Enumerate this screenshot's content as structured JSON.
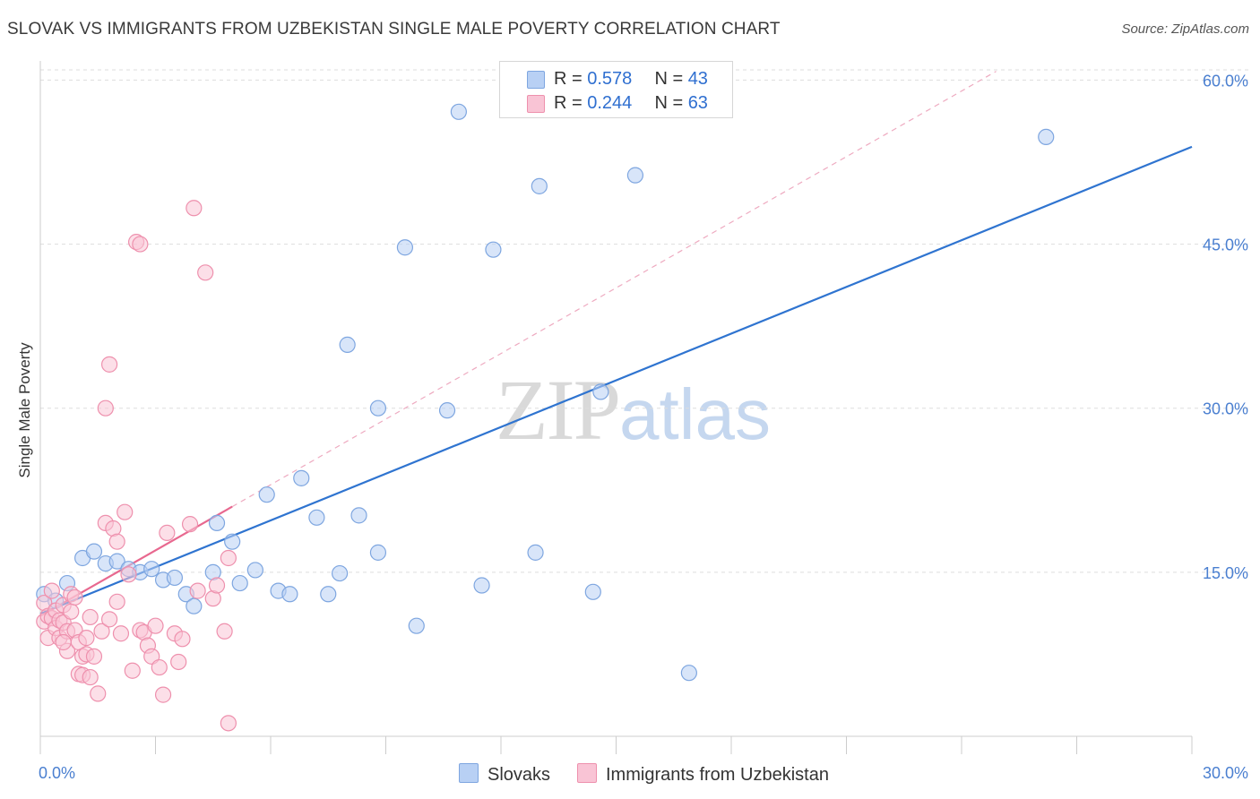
{
  "title": "SLOVAK VS IMMIGRANTS FROM UZBEKISTAN SINGLE MALE POVERTY CORRELATION CHART",
  "source": "Source: ZipAtlas.com",
  "watermark": {
    "zip": "ZIP",
    "atlas": "atlas"
  },
  "legend": {
    "r_label": "R =",
    "n_label": "N =",
    "rows": [
      {
        "r": "0.578",
        "n": "43",
        "fill": "#b8d0f4",
        "stroke": "#7ea6e0"
      },
      {
        "r": "0.244",
        "n": "63",
        "fill": "#f9c4d5",
        "stroke": "#ee90ad"
      }
    ]
  },
  "bottom_legend": [
    "Slovaks",
    "Immigrants from Uzbekistan"
  ],
  "chart_data": {
    "type": "scatter",
    "title": "SLOVAK VS IMMIGRANTS FROM UZBEKISTAN SINGLE MALE POVERTY CORRELATION CHART",
    "xlabel": "",
    "ylabel": "Single Male Poverty",
    "xlim": [
      0,
      30
    ],
    "ylim": [
      0,
      62
    ],
    "x_tick_labels": [
      "0.0%",
      "30.0%"
    ],
    "y_ticks": [
      15,
      30,
      45,
      60
    ],
    "y_tick_labels": [
      "15.0%",
      "30.0%",
      "45.0%",
      "60.0%"
    ],
    "grid": true,
    "series": [
      {
        "name": "Slovaks",
        "color": "#7ea6e0",
        "fill": "#b8d0f4",
        "line_color": "#2f74d0",
        "trend": [
          [
            0.0,
            11.2
          ],
          [
            30.0,
            53.9
          ]
        ],
        "points": [
          [
            0.1,
            13.0
          ],
          [
            0.4,
            12.4
          ],
          [
            0.7,
            14.0
          ],
          [
            1.1,
            16.3
          ],
          [
            1.4,
            16.9
          ],
          [
            1.7,
            15.8
          ],
          [
            2.0,
            16.0
          ],
          [
            2.3,
            15.3
          ],
          [
            2.6,
            15.0
          ],
          [
            2.9,
            15.3
          ],
          [
            3.2,
            14.3
          ],
          [
            3.5,
            14.5
          ],
          [
            3.8,
            13.0
          ],
          [
            4.0,
            11.9
          ],
          [
            4.5,
            15.0
          ],
          [
            4.6,
            19.5
          ],
          [
            5.0,
            17.8
          ],
          [
            5.2,
            14.0
          ],
          [
            5.6,
            15.2
          ],
          [
            5.9,
            22.1
          ],
          [
            6.2,
            13.3
          ],
          [
            6.5,
            13.0
          ],
          [
            6.8,
            23.6
          ],
          [
            7.2,
            20.0
          ],
          [
            7.5,
            13.0
          ],
          [
            7.8,
            14.9
          ],
          [
            8.0,
            35.8
          ],
          [
            8.3,
            20.2
          ],
          [
            8.8,
            16.8
          ],
          [
            8.8,
            30.0
          ],
          [
            9.5,
            44.7
          ],
          [
            9.8,
            10.1
          ],
          [
            10.6,
            29.8
          ],
          [
            10.9,
            57.1
          ],
          [
            11.5,
            13.8
          ],
          [
            11.8,
            44.5
          ],
          [
            12.9,
            16.8
          ],
          [
            13.0,
            50.3
          ],
          [
            14.4,
            13.2
          ],
          [
            14.6,
            31.5
          ],
          [
            15.5,
            51.3
          ],
          [
            16.9,
            5.8
          ],
          [
            26.2,
            54.8
          ]
        ]
      },
      {
        "name": "Immigrants from Uzbekistan",
        "color": "#ee90ad",
        "fill": "#f9c4d5",
        "line_color": "#e8688f",
        "trend": [
          [
            0.0,
            11.0
          ],
          [
            5.0,
            21.0
          ]
        ],
        "points": [
          [
            0.1,
            12.2
          ],
          [
            0.1,
            10.5
          ],
          [
            0.2,
            11.0
          ],
          [
            0.2,
            9.0
          ],
          [
            0.3,
            13.3
          ],
          [
            0.3,
            10.8
          ],
          [
            0.4,
            11.5
          ],
          [
            0.4,
            9.9
          ],
          [
            0.5,
            10.6
          ],
          [
            0.5,
            9.0
          ],
          [
            0.6,
            12.0
          ],
          [
            0.6,
            10.4
          ],
          [
            0.7,
            9.6
          ],
          [
            0.7,
            7.8
          ],
          [
            0.8,
            13.0
          ],
          [
            0.8,
            11.4
          ],
          [
            0.9,
            12.7
          ],
          [
            0.9,
            9.7
          ],
          [
            1.0,
            8.6
          ],
          [
            1.0,
            5.7
          ],
          [
            1.1,
            7.3
          ],
          [
            1.1,
            5.6
          ],
          [
            1.2,
            9.0
          ],
          [
            1.2,
            7.5
          ],
          [
            1.3,
            10.9
          ],
          [
            1.3,
            5.4
          ],
          [
            1.4,
            7.3
          ],
          [
            1.5,
            3.9
          ],
          [
            1.6,
            9.6
          ],
          [
            1.7,
            30.0
          ],
          [
            1.7,
            19.5
          ],
          [
            1.8,
            10.7
          ],
          [
            1.8,
            34.0
          ],
          [
            1.9,
            19.0
          ],
          [
            2.0,
            17.8
          ],
          [
            2.0,
            12.3
          ],
          [
            2.1,
            9.4
          ],
          [
            2.2,
            20.5
          ],
          [
            2.3,
            14.8
          ],
          [
            2.5,
            45.2
          ],
          [
            2.6,
            9.7
          ],
          [
            2.6,
            45.0
          ],
          [
            2.7,
            9.5
          ],
          [
            2.8,
            8.3
          ],
          [
            2.9,
            7.3
          ],
          [
            3.1,
            6.3
          ],
          [
            3.2,
            3.8
          ],
          [
            3.3,
            18.6
          ],
          [
            3.5,
            9.4
          ],
          [
            3.6,
            6.8
          ],
          [
            3.7,
            8.9
          ],
          [
            3.9,
            19.4
          ],
          [
            4.0,
            48.3
          ],
          [
            4.1,
            13.3
          ],
          [
            4.3,
            42.4
          ],
          [
            4.5,
            12.6
          ],
          [
            4.6,
            13.8
          ],
          [
            4.8,
            9.6
          ],
          [
            4.9,
            16.3
          ],
          [
            4.9,
            1.2
          ],
          [
            2.4,
            6.0
          ],
          [
            3.0,
            10.1
          ],
          [
            0.6,
            8.6
          ]
        ]
      }
    ]
  }
}
